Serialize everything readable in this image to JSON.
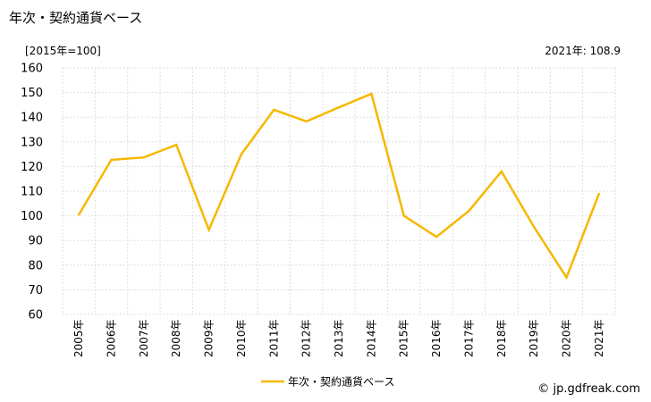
{
  "title": "年次・契約通貨ベース",
  "unit_label": "[2015年=100]",
  "latest_label": "2021年: 108.9",
  "credit": "© jp.gdfreak.com",
  "colors": {
    "series": "#f5b800",
    "grid": "#dddddd",
    "axis": "#999999"
  },
  "chart_data": {
    "type": "line",
    "title": "年次・契約通貨ベース",
    "ylabel": "[2015年=100]",
    "xlabel": "",
    "ylim": [
      60,
      160
    ],
    "yticks": [
      60,
      70,
      80,
      90,
      100,
      110,
      120,
      130,
      140,
      150,
      160
    ],
    "grid": true,
    "legend_position": "bottom-center",
    "categories": [
      "2005年",
      "2006年",
      "2007年",
      "2008年",
      "2009年",
      "2010年",
      "2011年",
      "2012年",
      "2013年",
      "2014年",
      "2015年",
      "2016年",
      "2017年",
      "2018年",
      "2019年",
      "2020年",
      "2021年"
    ],
    "series": [
      {
        "name": "年次・契約通貨ベース",
        "values": [
          100.5,
          122.7,
          123.7,
          128.8,
          94.3,
          125.0,
          143.0,
          138.3,
          144.0,
          149.5,
          100.0,
          91.5,
          102.0,
          118.0,
          95.5,
          75.0,
          108.9
        ]
      }
    ]
  }
}
